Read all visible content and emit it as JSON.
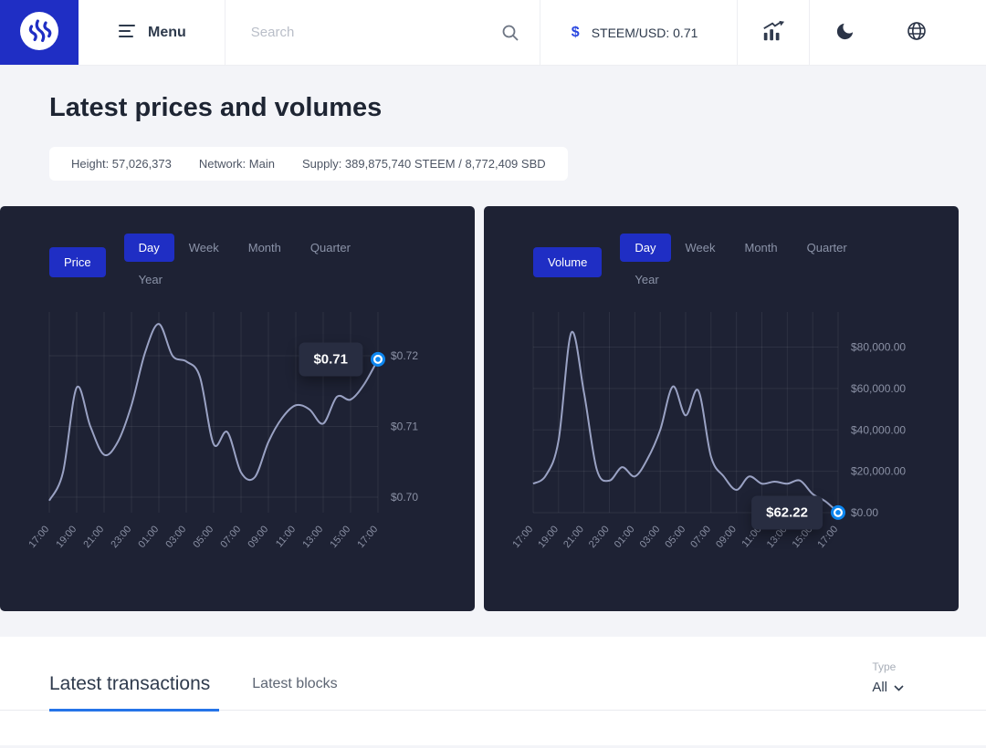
{
  "navbar": {
    "menu_label": "Menu",
    "search_placeholder": "Search",
    "ticker_symbol": "$",
    "ticker_label": "STEEM/USD: 0.71"
  },
  "header": {
    "title": "Latest prices and volumes",
    "stats": [
      "Height: 57,026,373",
      "Network: Main",
      "Supply: 389,875,740 STEEM / 8,772,409 SBD"
    ]
  },
  "tabs_section": {
    "transactions_tab": "Latest transactions",
    "blocks_tab": "Latest blocks",
    "type_label": "Type",
    "type_value": "All"
  },
  "colors": {
    "accent_blue": "#1f2ec4",
    "marker_blue": "#0d87f1",
    "card_bg": "#1e2234",
    "line": "#9aa2c4",
    "tab_underline": "#2574e8"
  },
  "chart_data": [
    {
      "type": "line",
      "name": "price",
      "mode_label": "Price",
      "tabs": [
        "Day",
        "Week",
        "Month",
        "Quarter",
        "Year"
      ],
      "active_tab": "Day",
      "x": [
        "17:00",
        "18:00",
        "19:00",
        "20:00",
        "21:00",
        "22:00",
        "23:00",
        "00:00",
        "01:00",
        "02:00",
        "03:00",
        "04:00",
        "05:00",
        "06:00",
        "07:00",
        "08:00",
        "09:00",
        "10:00",
        "11:00",
        "12:00",
        "13:00",
        "14:00",
        "15:00",
        "16:00",
        "17:00"
      ],
      "x_tick_labels": [
        "17:00",
        "19:00",
        "21:00",
        "23:00",
        "01:00",
        "03:00",
        "05:00",
        "07:00",
        "09:00",
        "11:00",
        "13:00",
        "15:00",
        "17:00"
      ],
      "values": [
        0.6995,
        0.7035,
        0.7155,
        0.71,
        0.706,
        0.7078,
        0.713,
        0.7205,
        0.7245,
        0.72,
        0.7192,
        0.717,
        0.7075,
        0.7092,
        0.7035,
        0.7028,
        0.7078,
        0.7112,
        0.713,
        0.7124,
        0.7104,
        0.7142,
        0.7138,
        0.716,
        0.7195
      ],
      "ylim": [
        0.6978,
        0.7262
      ],
      "y_ticks": [
        {
          "v": 0.72,
          "label": "$0.72"
        },
        {
          "v": 0.71,
          "label": "$0.71"
        },
        {
          "v": 0.7,
          "label": "$0.70"
        }
      ],
      "tooltip_label": "$0.71",
      "grid": true,
      "legend_position": "none"
    },
    {
      "type": "line",
      "name": "volume",
      "mode_label": "Volume",
      "tabs": [
        "Day",
        "Week",
        "Month",
        "Quarter",
        "Year"
      ],
      "active_tab": "Day",
      "x": [
        "17:00",
        "18:00",
        "19:00",
        "20:00",
        "21:00",
        "22:00",
        "23:00",
        "00:00",
        "01:00",
        "02:00",
        "03:00",
        "04:00",
        "05:00",
        "06:00",
        "07:00",
        "08:00",
        "09:00",
        "10:00",
        "11:00",
        "12:00",
        "13:00",
        "14:00",
        "15:00",
        "16:00",
        "17:00"
      ],
      "x_tick_labels": [
        "17:00",
        "19:00",
        "21:00",
        "23:00",
        "01:00",
        "03:00",
        "05:00",
        "07:00",
        "09:00",
        "11:00",
        "13:00",
        "15:00",
        "17:00"
      ],
      "values": [
        14000,
        18000,
        35000,
        87000,
        58000,
        21000,
        15500,
        22000,
        17500,
        26000,
        40000,
        61000,
        47000,
        59000,
        27000,
        17500,
        11000,
        17500,
        14000,
        15000,
        14000,
        15500,
        9000,
        5500,
        62.22
      ],
      "ylim": [
        0,
        97000
      ],
      "y_ticks": [
        {
          "v": 80000,
          "label": "$80,000.00"
        },
        {
          "v": 60000,
          "label": "$60,000.00"
        },
        {
          "v": 40000,
          "label": "$40,000.00"
        },
        {
          "v": 20000,
          "label": "$20,000.00"
        },
        {
          "v": 0,
          "label": "$0.00"
        }
      ],
      "tooltip_label": "$62.22",
      "grid": true,
      "legend_position": "none"
    }
  ]
}
